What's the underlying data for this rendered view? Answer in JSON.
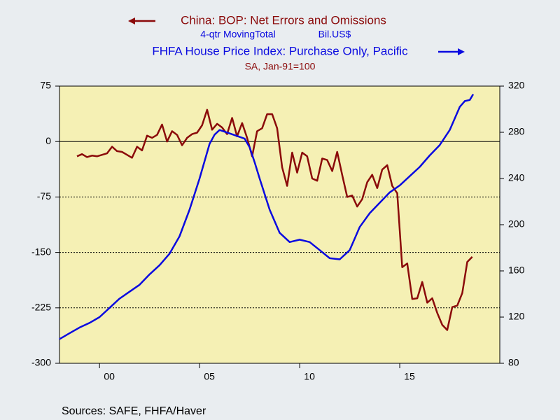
{
  "chart_data": {
    "type": "line",
    "series": [
      {
        "name": "China: BOP: Net Errors and Omissions",
        "subtitle_1": "4-qtr MovingTotal",
        "subtitle_2": "Bil.US$",
        "color": "#8b0a0a",
        "axis": "y",
        "x": [
          1998.875,
          1999.125,
          1999.375,
          1999.625,
          1999.875,
          2000.125,
          2000.375,
          2000.625,
          2000.875,
          2001.125,
          2001.375,
          2001.625,
          2001.875,
          2002.125,
          2002.375,
          2002.625,
          2002.875,
          2003.125,
          2003.375,
          2003.625,
          2003.875,
          2004.125,
          2004.375,
          2004.625,
          2004.875,
          2005.125,
          2005.375,
          2005.625,
          2005.875,
          2006.125,
          2006.375,
          2006.625,
          2006.875,
          2007.125,
          2007.375,
          2007.625,
          2007.875,
          2008.125,
          2008.375,
          2008.625,
          2008.875,
          2009.125,
          2009.375,
          2009.625,
          2009.875,
          2010.125,
          2010.375,
          2010.625,
          2010.875,
          2011.125,
          2011.375,
          2011.625,
          2011.875,
          2012.125,
          2012.375,
          2012.625,
          2012.875,
          2013.125,
          2013.375,
          2013.625,
          2013.875,
          2014.125,
          2014.375,
          2014.625,
          2014.875,
          2015.125,
          2015.375,
          2015.625,
          2015.875,
          2016.125,
          2016.375,
          2016.625,
          2016.875,
          2017.125,
          2017.375,
          2017.625,
          2017.875,
          2018.125,
          2018.375,
          2018.625
        ],
        "values": [
          -20,
          -17,
          -21,
          -19,
          -20,
          -18,
          -16,
          -7,
          -13,
          -14,
          -18,
          -22,
          -7,
          -12,
          8,
          5,
          9,
          23,
          0,
          14,
          9,
          -5,
          5,
          10,
          12,
          22,
          43,
          16,
          24,
          19,
          10,
          32,
          7,
          25,
          5,
          -20,
          14,
          18,
          37,
          37,
          18,
          -35,
          -60,
          -15,
          -42,
          -15,
          -20,
          -50,
          -53,
          -23,
          -25,
          -40,
          -14,
          -45,
          -75,
          -73,
          -88,
          -78,
          -55,
          -45,
          -63,
          -38,
          -32,
          -60,
          -70,
          -170,
          -165,
          -213,
          -212,
          -190,
          -218,
          -212,
          -232,
          -248,
          -255,
          -224,
          -222,
          -205,
          -163,
          -156
        ]
      },
      {
        "name": "FHFA House Price Index: Purchase Only, Pacific",
        "subtitle_1": "SA, Jan-91=100",
        "color": "#0a0ae0",
        "axis": "y2",
        "x": [
          1998.0,
          1998.5,
          1999.0,
          1999.5,
          2000.0,
          2000.5,
          2001.0,
          2001.5,
          2002.0,
          2002.5,
          2003.0,
          2003.5,
          2004.0,
          2004.5,
          2005.0,
          2005.5,
          2005.75,
          2006.0,
          2006.5,
          2007.0,
          2007.25,
          2007.5,
          2007.75,
          2008.0,
          2008.5,
          2009.0,
          2009.5,
          2010.0,
          2010.5,
          2011.0,
          2011.5,
          2012.0,
          2012.5,
          2013.0,
          2013.5,
          2014.0,
          2014.5,
          2015.0,
          2015.5,
          2016.0,
          2016.5,
          2017.0,
          2017.5,
          2018.0,
          2018.25,
          2018.5,
          2018.67
        ],
        "values": [
          101,
          106,
          111,
          115,
          120,
          128,
          136,
          142,
          148,
          157,
          165,
          175,
          190,
          213,
          240,
          270,
          278,
          282,
          279,
          276,
          274.5,
          267,
          254,
          240,
          213,
          193,
          185,
          187,
          185,
          178,
          171,
          170,
          178,
          198,
          210,
          219,
          228,
          234,
          242,
          250,
          260,
          269,
          282,
          302,
          307,
          308,
          313
        ]
      }
    ],
    "xlim": [
      1998,
      2020
    ],
    "xticks": [
      {
        "value": 2000,
        "label": "00"
      },
      {
        "value": 2005,
        "label": "05"
      },
      {
        "value": 2010,
        "label": "10"
      },
      {
        "value": 2015,
        "label": "15"
      }
    ],
    "ylim": [
      -300,
      75
    ],
    "yticks": [
      -300,
      -225,
      -150,
      -75,
      0,
      75
    ],
    "y2lim": [
      80,
      320
    ],
    "y2ticks": [
      80,
      120,
      160,
      200,
      240,
      280,
      320
    ],
    "grid": true,
    "source": "Sources:  SAFE, FHFA/Haver"
  }
}
